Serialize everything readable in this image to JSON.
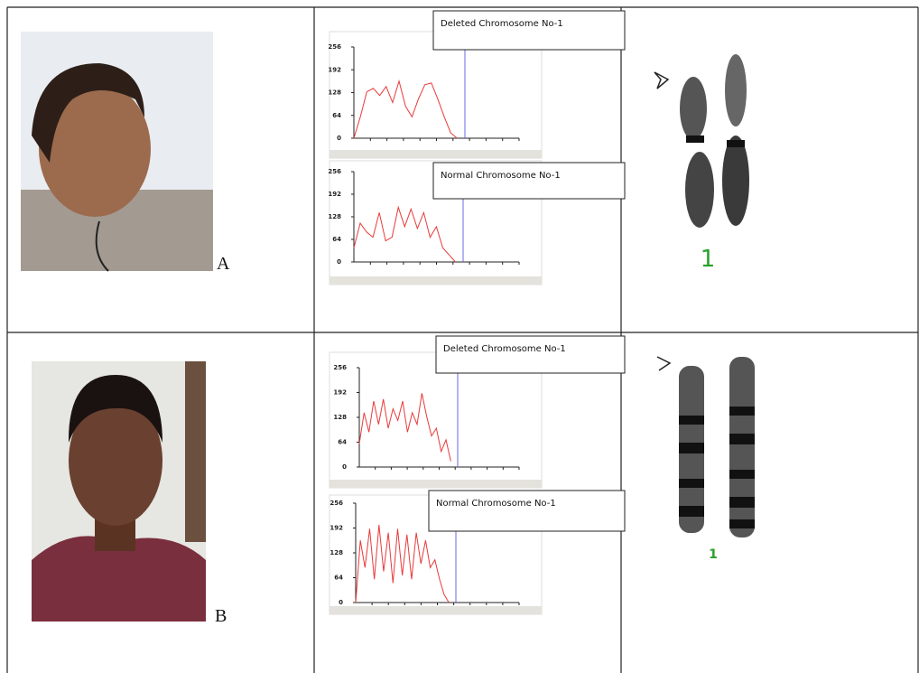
{
  "rows": [
    {
      "label": "A",
      "chromosome_label": "1",
      "charts": [
        {
          "type": "line",
          "title": "Deleted Chromosome No-1",
          "ylim": [
            0,
            256
          ],
          "yticks": [
            0,
            64,
            128,
            192,
            256
          ],
          "color": "#e83a3a",
          "values": [
            0,
            60,
            130,
            140,
            120,
            145,
            100,
            160,
            90,
            60,
            110,
            150,
            155,
            110,
            60,
            15,
            0
          ]
        },
        {
          "type": "line",
          "title": "Normal Chromosome No-1",
          "ylim": [
            0,
            256
          ],
          "yticks": [
            0,
            64,
            128,
            192,
            256
          ],
          "color": "#e83a3a",
          "values": [
            40,
            110,
            85,
            70,
            140,
            60,
            70,
            155,
            100,
            150,
            95,
            140,
            70,
            100,
            40,
            20,
            0
          ]
        }
      ]
    },
    {
      "label": "B",
      "chromosome_label": "1",
      "charts": [
        {
          "type": "line",
          "title": "Deleted Chromosome No-1",
          "ylim": [
            0,
            256
          ],
          "yticks": [
            0,
            64,
            128,
            192,
            256
          ],
          "color": "#e83a3a",
          "values": [
            60,
            140,
            90,
            170,
            110,
            175,
            100,
            150,
            120,
            170,
            90,
            140,
            110,
            190,
            130,
            80,
            100,
            40,
            70,
            15
          ]
        },
        {
          "type": "line",
          "title": "Normal Chromosome No-1",
          "ylim": [
            0,
            256
          ],
          "yticks": [
            0,
            64,
            128,
            192,
            256
          ],
          "color": "#e83a3a",
          "values": [
            0,
            160,
            90,
            190,
            60,
            200,
            80,
            180,
            50,
            190,
            70,
            175,
            60,
            180,
            100,
            160,
            90,
            110,
            60,
            20,
            0
          ]
        }
      ]
    }
  ]
}
